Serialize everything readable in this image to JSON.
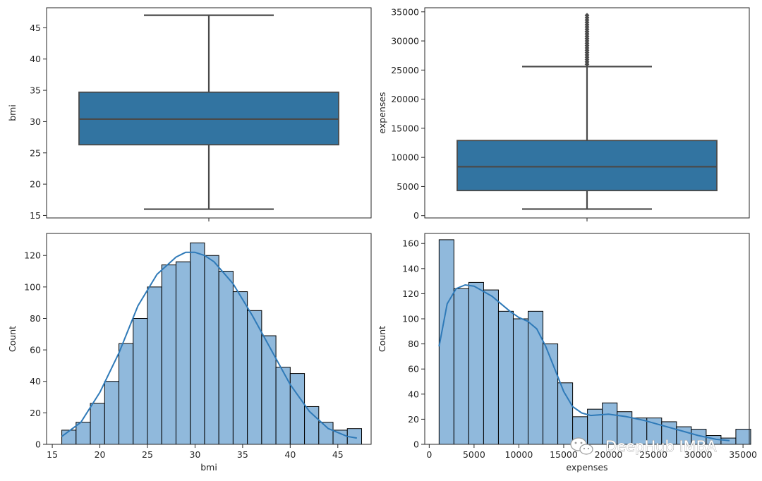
{
  "watermark": {
    "text": "DeepHub IMBA",
    "icon": "wechat-icon"
  },
  "colors": {
    "box_fill": "#3274a1",
    "hist_fill": "#90b9dc",
    "kde_line": "#2f7ab8",
    "edge": "#000000",
    "whisker": "#4a4a4a"
  },
  "chart_data": [
    {
      "type": "box",
      "xlabel": "",
      "ylabel": "bmi",
      "ylim": [
        14.6,
        48.2
      ],
      "yticks": [
        15,
        20,
        25,
        30,
        35,
        40,
        45
      ],
      "whisker_low": 16.0,
      "q1": 26.3,
      "median": 30.4,
      "q3": 34.7,
      "whisker_high": 47.0,
      "outliers": []
    },
    {
      "type": "box",
      "xlabel": "",
      "ylabel": "expenses",
      "ylim": [
        -400,
        35700
      ],
      "yticks": [
        0,
        5000,
        10000,
        15000,
        20000,
        25000,
        30000,
        35000
      ],
      "whisker_low": 1120,
      "q1": 4300,
      "median": 8400,
      "q3": 12900,
      "whisker_high": 25600,
      "outliers": [
        26000,
        26400,
        26800,
        27200,
        27600,
        28000,
        28400,
        28800,
        29200,
        29600,
        30000,
        30400,
        30800,
        31200,
        31600,
        32000,
        32400,
        32800,
        33200,
        33600,
        34000,
        34400
      ]
    },
    {
      "type": "histogram",
      "xlabel": "bmi",
      "ylabel": "Count",
      "xlim": [
        14.4,
        48.5
      ],
      "ylim": [
        0,
        134
      ],
      "xticks": [
        15,
        20,
        25,
        30,
        35,
        40,
        45
      ],
      "yticks": [
        0,
        20,
        40,
        60,
        80,
        100,
        120
      ],
      "bin_start": 16.0,
      "bin_width": 1.5,
      "counts": [
        9,
        14,
        26,
        40,
        64,
        80,
        100,
        114,
        116,
        128,
        120,
        110,
        97,
        85,
        69,
        49,
        45,
        24,
        14,
        9,
        10
      ],
      "kde": {
        "x": [
          16,
          18,
          20,
          22,
          24,
          26,
          28,
          29,
          30,
          31,
          32,
          34,
          36,
          38,
          40,
          42,
          44,
          46,
          47
        ],
        "y": [
          5,
          14,
          33,
          58,
          88,
          108,
          119,
          122,
          122,
          120,
          116,
          102,
          82,
          60,
          38,
          21,
          10,
          5,
          4
        ]
      }
    },
    {
      "type": "histogram",
      "xlabel": "expenses",
      "ylabel": "Count",
      "xlim": [
        -500,
        35700
      ],
      "ylim": [
        0,
        168
      ],
      "xticks": [
        0,
        5000,
        10000,
        15000,
        20000,
        25000,
        30000,
        35000
      ],
      "yticks": [
        0,
        20,
        40,
        60,
        80,
        100,
        120,
        140,
        160
      ],
      "bin_start": 1100,
      "bin_width": 1655,
      "counts": [
        163,
        124,
        129,
        123,
        106,
        100,
        106,
        80,
        49,
        22,
        28,
        33,
        26,
        21,
        21,
        18,
        14,
        12,
        7,
        5,
        12
      ],
      "kde": {
        "x": [
          1100,
          2000,
          3000,
          4000,
          5000,
          6000,
          7000,
          8000,
          9000,
          10000,
          11000,
          12000,
          13000,
          14000,
          15000,
          16000,
          17000,
          18000,
          20000,
          22000,
          24000,
          26000,
          28000,
          30000,
          32000,
          33500
        ],
        "y": [
          78,
          112,
          124,
          127,
          126,
          122,
          118,
          112,
          106,
          101,
          98,
          92,
          78,
          60,
          42,
          30,
          25,
          23,
          24,
          22,
          19,
          15,
          11,
          7,
          4,
          3
        ]
      }
    }
  ]
}
